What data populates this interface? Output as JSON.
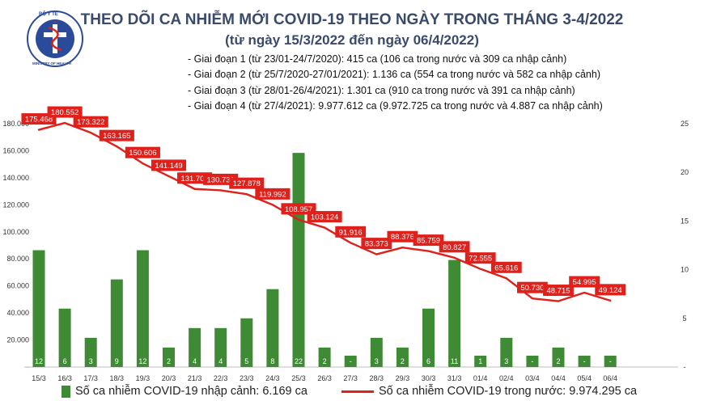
{
  "header": {
    "title": "THEO DÕI CA NHIỄM MỚI COVID-19 THEO NGÀY TRONG THÁNG 3-4/2022",
    "subtitle": "(từ ngày 15/3/2022 đến ngày 06/4/2022)",
    "logo_top_text": "BỘ Y TẾ",
    "logo_bottom_text": "MINISTRY OF HEALTH"
  },
  "stages": [
    "- Giai đoạn 1 (từ 23/01-24/7/2020): 415 ca (106 ca trong nước và 309 ca nhập cảnh)",
    "- Giai đoạn 2 (từ 25/7/2020-27/01/2021): 1.136 ca (554 ca trong nước và 582 ca nhập cảnh)",
    "- Giai đoạn 3 (từ 28/01-26/4/2021): 1.301 ca (910 ca trong nước và 391 ca nhập cảnh)",
    "- Giai đoạn 4 (từ 27/4/2021): 9.977.612 ca (9.972.725 ca trong nước và 4.887 ca nhập cảnh)"
  ],
  "legend": {
    "bars": "Số ca nhiễm COVID-19 nhập cảnh: 6.169 ca",
    "line": "Số ca nhiễm COVID-19 trong nước: 9.974.295 ca"
  },
  "colors": {
    "bar": "#3f8a34",
    "line": "#e0201b",
    "title": "#3a4a6b"
  },
  "chart_data": {
    "type": "bar+line",
    "categories": [
      "15/3",
      "16/3",
      "17/3",
      "18/3",
      "19/3",
      "20/3",
      "21/3",
      "22/3",
      "23/3",
      "24/3",
      "25/3",
      "26/3",
      "27/3",
      "28/3",
      "29/3",
      "30/3",
      "31/3",
      "01/4",
      "02/4",
      "03/4",
      "04/4",
      "05/4",
      "06/4"
    ],
    "series": [
      {
        "name": "Số ca nhiễm COVID-19 nhập cảnh",
        "type": "bar",
        "axis": "right",
        "values": [
          12,
          6,
          3,
          9,
          12,
          2,
          4,
          4,
          5,
          8,
          22,
          2,
          0,
          3,
          2,
          6,
          11,
          1,
          3,
          0,
          2,
          0,
          0
        ],
        "labels": [
          "12",
          "6",
          "3",
          "9",
          "12",
          "2",
          "4",
          "4",
          "5",
          "8",
          "22",
          "2",
          "-",
          "3",
          "2",
          "6",
          "11",
          "1",
          "3",
          "-",
          "2",
          "-",
          "-"
        ]
      },
      {
        "name": "Số ca nhiễm COVID-19 trong nước",
        "type": "line",
        "axis": "left",
        "values": [
          175468,
          180552,
          173322,
          163165,
          150606,
          141149,
          131709,
          130731,
          127878,
          119992,
          108957,
          103124,
          91916,
          83373,
          88376,
          85759,
          80827,
          72555,
          65616,
          50730,
          48715,
          54995,
          49124
        ],
        "labels": [
          "175.468",
          "180.552",
          "173.322",
          "163.165",
          "150.606",
          "141.149",
          "131.709",
          "130.731",
          "127.878",
          "119.992",
          "108.957",
          "103.124",
          "91.916",
          "83.373",
          "88.376",
          "85.759",
          "80.827",
          "72.555",
          "65.616",
          "50.730",
          "48.715",
          "54.995",
          "49.124"
        ]
      }
    ],
    "y_left": {
      "min": 0,
      "max": 180000,
      "ticks": [
        "-",
        "20.000",
        "40.000",
        "60.000",
        "80.000",
        "100.000",
        "120.000",
        "140.000",
        "160.000",
        "180.000"
      ]
    },
    "y_right": {
      "min": 0,
      "max": 25,
      "ticks": [
        "-",
        "5",
        "10",
        "15",
        "20",
        "25"
      ]
    },
    "grid": false
  }
}
